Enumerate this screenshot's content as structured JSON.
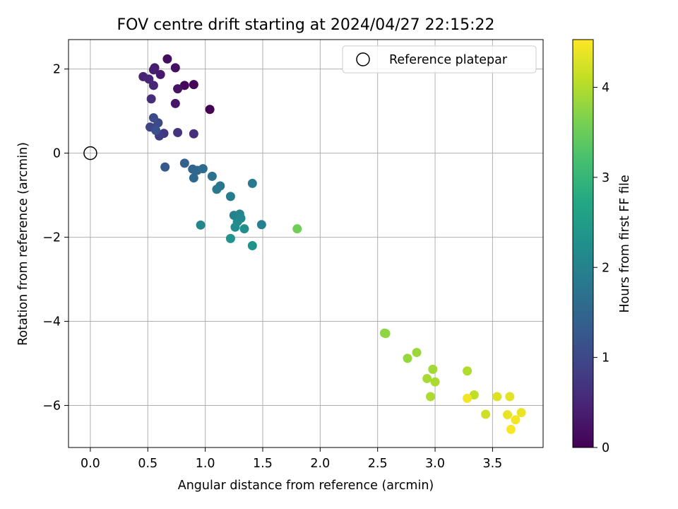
{
  "chart_data": {
    "type": "scatter",
    "title": "FOV centre drift starting at 2024/04/27 22:15:22",
    "xlabel": "Angular distance from reference (arcmin)",
    "ylabel": "Rotation from reference (arcmin)",
    "xlim": [
      -0.19,
      3.94
    ],
    "ylim": [
      -7.0,
      2.7
    ],
    "x_ticks": [
      0.0,
      0.5,
      1.0,
      1.5,
      2.0,
      2.5,
      3.0,
      3.5
    ],
    "x_tick_labels": [
      "0.0",
      "0.5",
      "1.0",
      "1.5",
      "2.0",
      "2.5",
      "3.0",
      "3.5"
    ],
    "y_ticks": [
      2,
      0,
      -2,
      -4,
      -6
    ],
    "y_tick_labels": [
      "2",
      "0",
      "−2",
      "−4",
      "−6"
    ],
    "grid": true,
    "legend": {
      "position": "top-right",
      "entries": [
        "Reference platepar"
      ]
    },
    "reference_point": {
      "x": 0.0,
      "y": 0.0,
      "marker": "open-circle",
      "label": "Reference platepar"
    },
    "colorbar": {
      "label": "Hours from first FF file",
      "colormap": "viridis",
      "range": [
        0,
        4.53
      ],
      "ticks": [
        0,
        1,
        2,
        3,
        4
      ],
      "tick_labels": [
        "0",
        "1",
        "2",
        "3",
        "4"
      ]
    },
    "points": [
      {
        "x": 1.04,
        "y": 1.04,
        "c": 0.02
      },
      {
        "x": 0.9,
        "y": 1.63,
        "c": 0.06
      },
      {
        "x": 0.82,
        "y": 1.61,
        "c": 0.1
      },
      {
        "x": 0.67,
        "y": 2.24,
        "c": 0.16
      },
      {
        "x": 0.74,
        "y": 2.03,
        "c": 0.2
      },
      {
        "x": 0.76,
        "y": 1.53,
        "c": 0.24
      },
      {
        "x": 0.74,
        "y": 1.18,
        "c": 0.28
      },
      {
        "x": 0.61,
        "y": 1.87,
        "c": 0.32
      },
      {
        "x": 0.56,
        "y": 2.03,
        "c": 0.36
      },
      {
        "x": 0.55,
        "y": 1.98,
        "c": 0.4
      },
      {
        "x": 0.46,
        "y": 1.82,
        "c": 0.44
      },
      {
        "x": 0.51,
        "y": 1.76,
        "c": 0.48
      },
      {
        "x": 0.55,
        "y": 1.61,
        "c": 0.52
      },
      {
        "x": 0.53,
        "y": 1.29,
        "c": 0.58
      },
      {
        "x": 0.9,
        "y": 0.46,
        "c": 0.64
      },
      {
        "x": 0.76,
        "y": 0.49,
        "c": 0.7
      },
      {
        "x": 0.64,
        "y": 0.47,
        "c": 0.76
      },
      {
        "x": 0.6,
        "y": 0.41,
        "c": 0.82
      },
      {
        "x": 0.56,
        "y": 0.6,
        "c": 0.88
      },
      {
        "x": 0.52,
        "y": 0.62,
        "c": 0.94
      },
      {
        "x": 0.59,
        "y": 0.72,
        "c": 1.0
      },
      {
        "x": 0.55,
        "y": 0.84,
        "c": 1.06
      },
      {
        "x": 0.57,
        "y": 0.54,
        "c": 1.12
      },
      {
        "x": 0.65,
        "y": -0.33,
        "c": 1.3
      },
      {
        "x": 0.82,
        "y": -0.24,
        "c": 1.4
      },
      {
        "x": 0.89,
        "y": -0.38,
        "c": 1.48
      },
      {
        "x": 0.93,
        "y": -0.41,
        "c": 1.54
      },
      {
        "x": 0.98,
        "y": -0.37,
        "c": 1.6
      },
      {
        "x": 0.9,
        "y": -0.59,
        "c": 1.52
      },
      {
        "x": 1.06,
        "y": -0.55,
        "c": 1.7
      },
      {
        "x": 1.13,
        "y": -0.78,
        "c": 1.76
      },
      {
        "x": 1.1,
        "y": -0.86,
        "c": 1.82
      },
      {
        "x": 1.22,
        "y": -1.03,
        "c": 1.9
      },
      {
        "x": 1.41,
        "y": -0.72,
        "c": 1.86
      },
      {
        "x": 1.25,
        "y": -1.48,
        "c": 2.0
      },
      {
        "x": 1.3,
        "y": -1.45,
        "c": 2.05
      },
      {
        "x": 1.31,
        "y": -1.55,
        "c": 2.1
      },
      {
        "x": 1.28,
        "y": -1.63,
        "c": 2.15
      },
      {
        "x": 1.26,
        "y": -1.76,
        "c": 2.2
      },
      {
        "x": 1.34,
        "y": -1.8,
        "c": 2.25
      },
      {
        "x": 1.49,
        "y": -1.7,
        "c": 1.96
      },
      {
        "x": 0.96,
        "y": -1.71,
        "c": 2.05
      },
      {
        "x": 1.22,
        "y": -2.03,
        "c": 2.35
      },
      {
        "x": 1.41,
        "y": -2.2,
        "c": 2.3
      },
      {
        "x": 1.8,
        "y": -1.8,
        "c": 3.55
      },
      {
        "x": 2.56,
        "y": -4.28,
        "c": 3.75
      },
      {
        "x": 2.57,
        "y": -4.29,
        "c": 3.76
      },
      {
        "x": 2.84,
        "y": -4.74,
        "c": 3.85
      },
      {
        "x": 2.76,
        "y": -4.88,
        "c": 3.82
      },
      {
        "x": 2.98,
        "y": -5.14,
        "c": 3.9
      },
      {
        "x": 2.93,
        "y": -5.36,
        "c": 3.94
      },
      {
        "x": 3.0,
        "y": -5.44,
        "c": 3.96
      },
      {
        "x": 2.96,
        "y": -5.79,
        "c": 3.98
      },
      {
        "x": 3.28,
        "y": -5.18,
        "c": 4.0
      },
      {
        "x": 3.34,
        "y": -5.75,
        "c": 4.1
      },
      {
        "x": 3.28,
        "y": -5.83,
        "c": 4.45
      },
      {
        "x": 3.54,
        "y": -5.79,
        "c": 4.3
      },
      {
        "x": 3.65,
        "y": -5.79,
        "c": 4.35
      },
      {
        "x": 3.44,
        "y": -6.21,
        "c": 4.2
      },
      {
        "x": 3.63,
        "y": -6.22,
        "c": 4.38
      },
      {
        "x": 3.7,
        "y": -6.34,
        "c": 4.45
      },
      {
        "x": 3.75,
        "y": -6.17,
        "c": 4.4
      },
      {
        "x": 3.66,
        "y": -6.57,
        "c": 4.5
      }
    ]
  }
}
